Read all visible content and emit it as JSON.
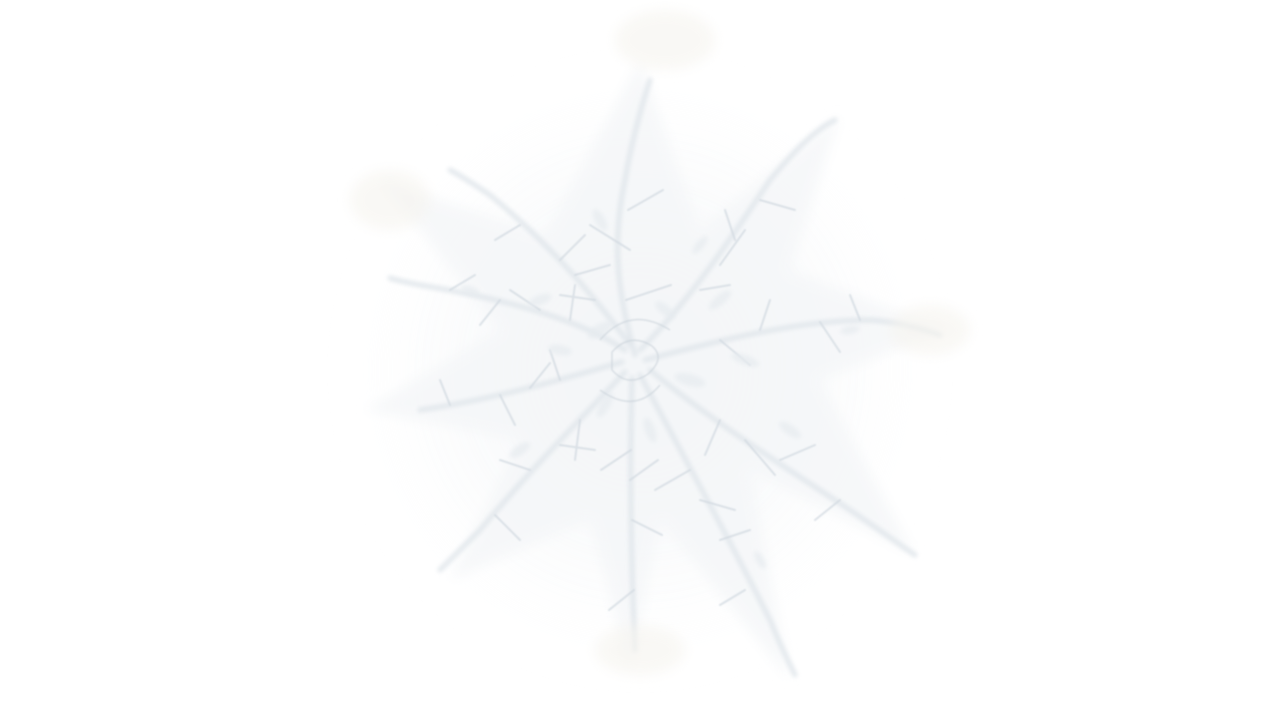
{
  "scene": {
    "subject": "snowflake-image",
    "background_color": "#ffffff",
    "palette": {
      "highlight": "#ffffff",
      "soft_shadow": "#eef1f4",
      "mid_shadow": "#e1e6eb",
      "deep_shadow": "#cfd6dd",
      "warm_tint": "#f7f5f1"
    }
  }
}
